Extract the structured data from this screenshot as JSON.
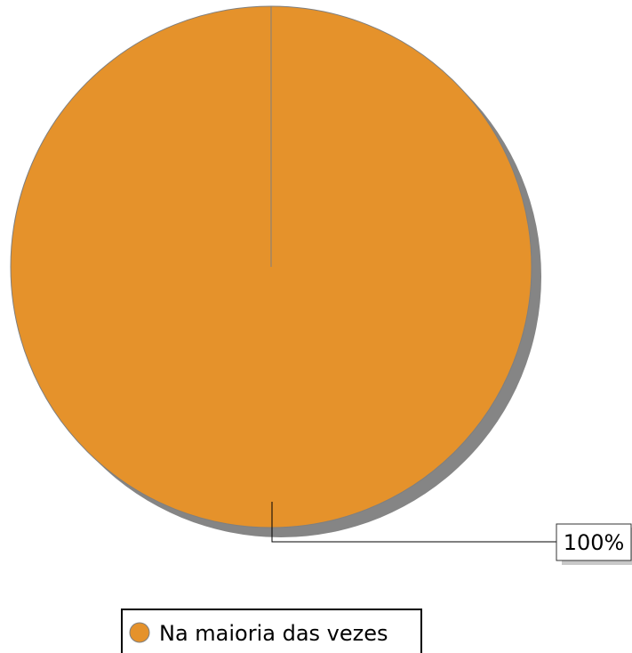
{
  "chart_data": {
    "type": "pie",
    "slices": [
      {
        "label": "Na maioria das vezes",
        "value": 100,
        "display": "100%",
        "color": "#E5922B"
      }
    ],
    "legend": {
      "placement": "bottom",
      "entries": [
        "Na maioria das vezes"
      ]
    },
    "colors": {
      "shadow": "#858585",
      "outline": "#7f7f7f",
      "leader": "#000000",
      "label_box_border": "#333333",
      "label_box_shadow": "#c8c8c8"
    }
  }
}
